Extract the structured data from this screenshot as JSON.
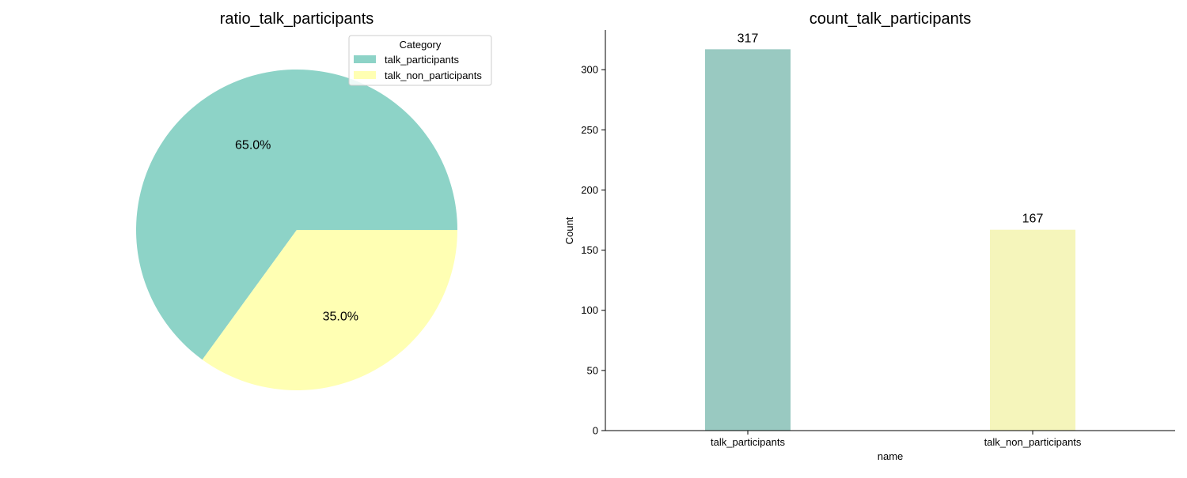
{
  "chart_data": [
    {
      "type": "pie",
      "title": "ratio_talk_participants",
      "categories": [
        "talk_participants",
        "talk_non_participants"
      ],
      "values": [
        65.0,
        35.0
      ],
      "value_labels": [
        "65.0%",
        "35.0%"
      ],
      "colors": [
        "#8dd3c7",
        "#ffffb3"
      ],
      "legend": {
        "title": "Category",
        "placement": "top-right",
        "entries": [
          "talk_participants",
          "talk_non_participants"
        ]
      }
    },
    {
      "type": "bar",
      "title": "count_talk_participants",
      "categories": [
        "talk_participants",
        "talk_non_participants"
      ],
      "values": [
        317,
        167
      ],
      "value_labels": [
        "317",
        "167"
      ],
      "colors": [
        "#99c9c1",
        "#f5f5bb"
      ],
      "xlabel": "name",
      "ylabel": "Count",
      "ylim": [
        0,
        333
      ],
      "yticks": [
        0,
        50,
        100,
        150,
        200,
        250,
        300
      ],
      "ytick_labels": [
        "0",
        "50",
        "100",
        "150",
        "200",
        "250",
        "300"
      ],
      "grid": false
    }
  ]
}
